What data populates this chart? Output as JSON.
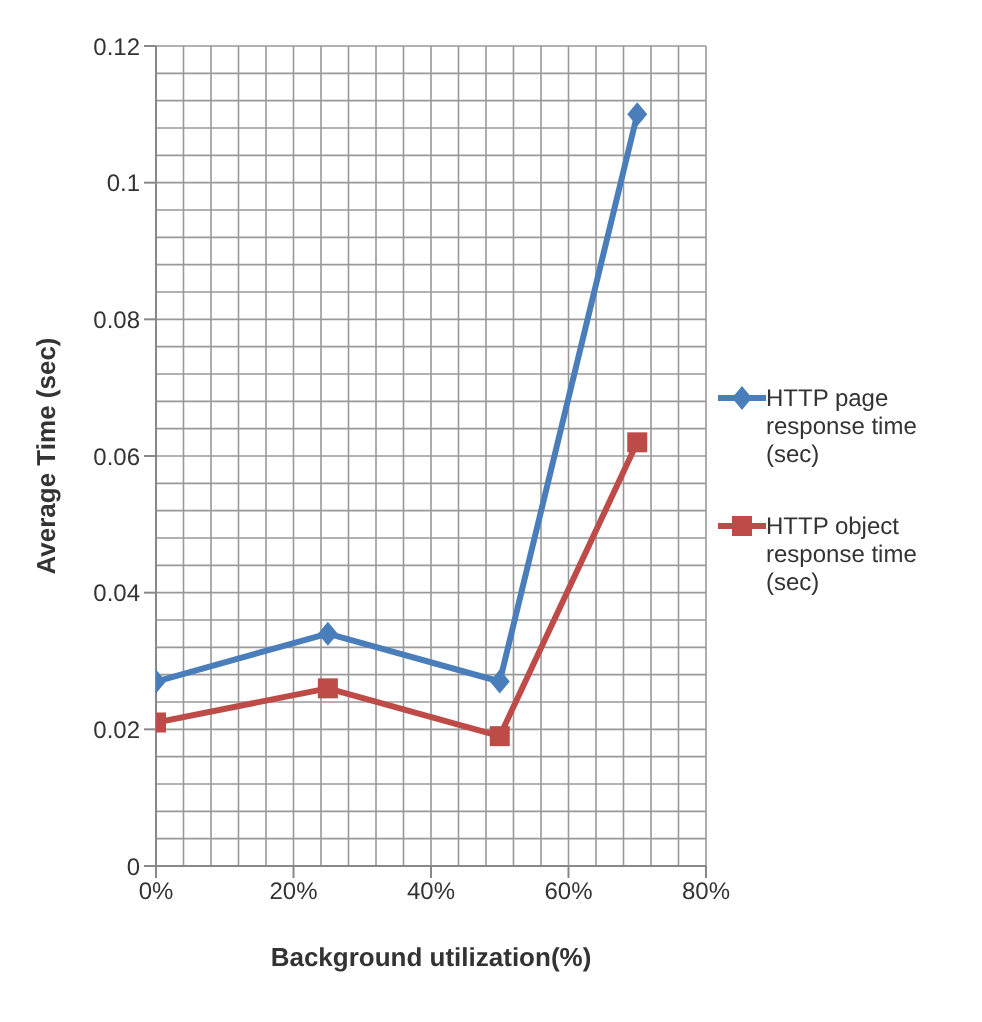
{
  "chart_data": {
    "type": "line",
    "xlabel": "Background utilization(%)",
    "ylabel": "Average Time (sec)",
    "x": [
      0,
      25,
      50,
      70
    ],
    "series": [
      {
        "name": "HTTP page response time (sec)",
        "color": "#4a7ebb",
        "marker": "diamond",
        "values": [
          0.027,
          0.034,
          0.027,
          0.11
        ]
      },
      {
        "name": "HTTP object response time (sec)",
        "color": "#be4b48",
        "marker": "square",
        "values": [
          0.021,
          0.026,
          0.019,
          0.062
        ]
      }
    ],
    "xlim": [
      0,
      80
    ],
    "xticks": [
      {
        "value": 0,
        "label": "0%"
      },
      {
        "value": 20,
        "label": "20%"
      },
      {
        "value": 40,
        "label": "40%"
      },
      {
        "value": 60,
        "label": "60%"
      },
      {
        "value": 80,
        "label": "80%"
      }
    ],
    "ylim": [
      0,
      0.12
    ],
    "yticks": [
      0,
      0.02,
      0.04,
      0.06,
      0.08,
      0.1,
      0.12
    ],
    "grid": true,
    "legend": "right",
    "line_style": "solid"
  }
}
